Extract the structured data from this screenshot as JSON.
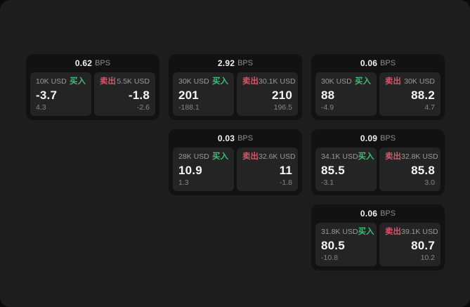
{
  "labels": {
    "bps_unit": "BPS",
    "buy": "买入",
    "sell": "卖出"
  },
  "colors": {
    "buy_accent": "#3fbb77",
    "sell_accent": "#d5566a",
    "page_bg": "#1d1d1d",
    "card_bg": "#121212",
    "panel_bg": "#242424"
  },
  "cards": [
    {
      "bps": "0.62",
      "buy": {
        "amount": "10K USD",
        "price": "-3.7",
        "change": "4.3"
      },
      "sell": {
        "amount": "5.5K USD",
        "price": "-1.8",
        "change": "-2.6"
      }
    },
    {
      "bps": "2.92",
      "buy": {
        "amount": "30K USD",
        "price": "201",
        "change": "-188.1"
      },
      "sell": {
        "amount": "30.1K USD",
        "price": "210",
        "change": "196.5"
      }
    },
    {
      "bps": "0.06",
      "buy": {
        "amount": "30K USD",
        "price": "88",
        "change": "-4.9"
      },
      "sell": {
        "amount": "30K USD",
        "price": "88.2",
        "change": "4.7"
      }
    },
    {
      "bps": "0.03",
      "buy": {
        "amount": "28K USD",
        "price": "10.9",
        "change": "1.3"
      },
      "sell": {
        "amount": "32.6K USD",
        "price": "11",
        "change": "-1.8"
      }
    },
    {
      "bps": "0.09",
      "buy": {
        "amount": "34.1K USD",
        "price": "85.5",
        "change": "-3.1"
      },
      "sell": {
        "amount": "32.8K USD",
        "price": "85.8",
        "change": "3.0"
      }
    },
    {
      "bps": "0.06",
      "buy": {
        "amount": "31.8K USD",
        "price": "80.5",
        "change": "-10.8"
      },
      "sell": {
        "amount": "39.1K USD",
        "price": "80.7",
        "change": "10.2"
      }
    }
  ]
}
